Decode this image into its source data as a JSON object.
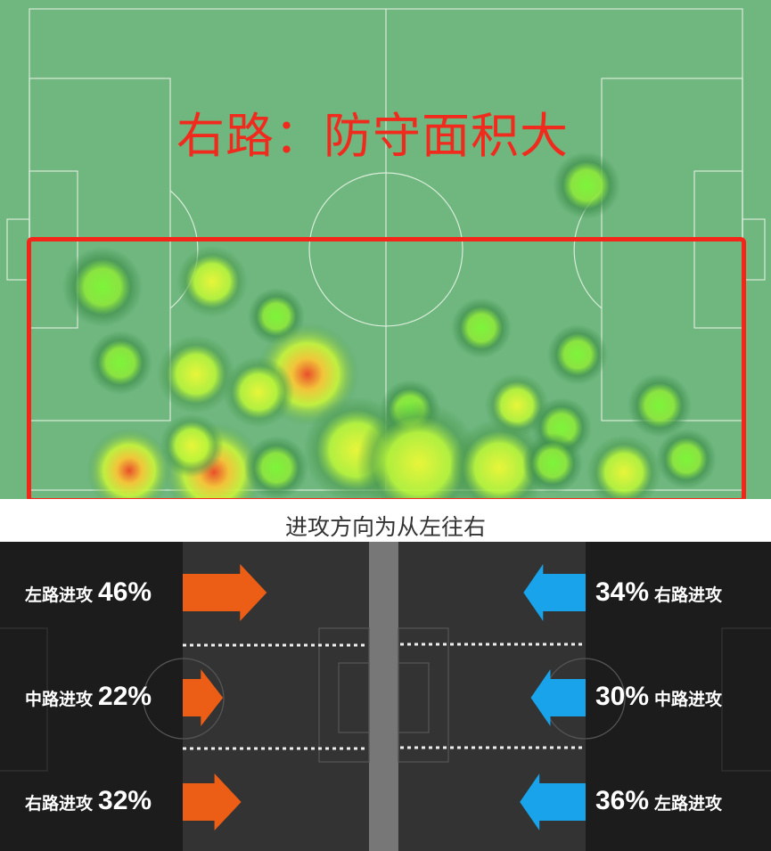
{
  "heatmap": {
    "title": "右路：防守面积大",
    "caption": "进攻方向为从左往右",
    "colors": {
      "pitch": "#6fb77f",
      "highlight_box": "#f4261a",
      "title": "#f02a1c"
    }
  },
  "attack_direction": {
    "colors": {
      "left_team": "#ec5e15",
      "right_team": "#18a3ea",
      "panel": "#1c1c1c",
      "pitch": "#333333"
    },
    "left_team": [
      {
        "label": "左路进攻",
        "percent": 46,
        "percent_text": "46%"
      },
      {
        "label": "中路进攻",
        "percent": 22,
        "percent_text": "22%"
      },
      {
        "label": "右路进攻",
        "percent": 32,
        "percent_text": "32%"
      }
    ],
    "right_team": [
      {
        "label": "右路进攻",
        "percent": 34,
        "percent_text": "34%"
      },
      {
        "label": "中路进攻",
        "percent": 30,
        "percent_text": "30%"
      },
      {
        "label": "左路进攻",
        "percent": 36,
        "percent_text": "36%"
      }
    ]
  }
}
